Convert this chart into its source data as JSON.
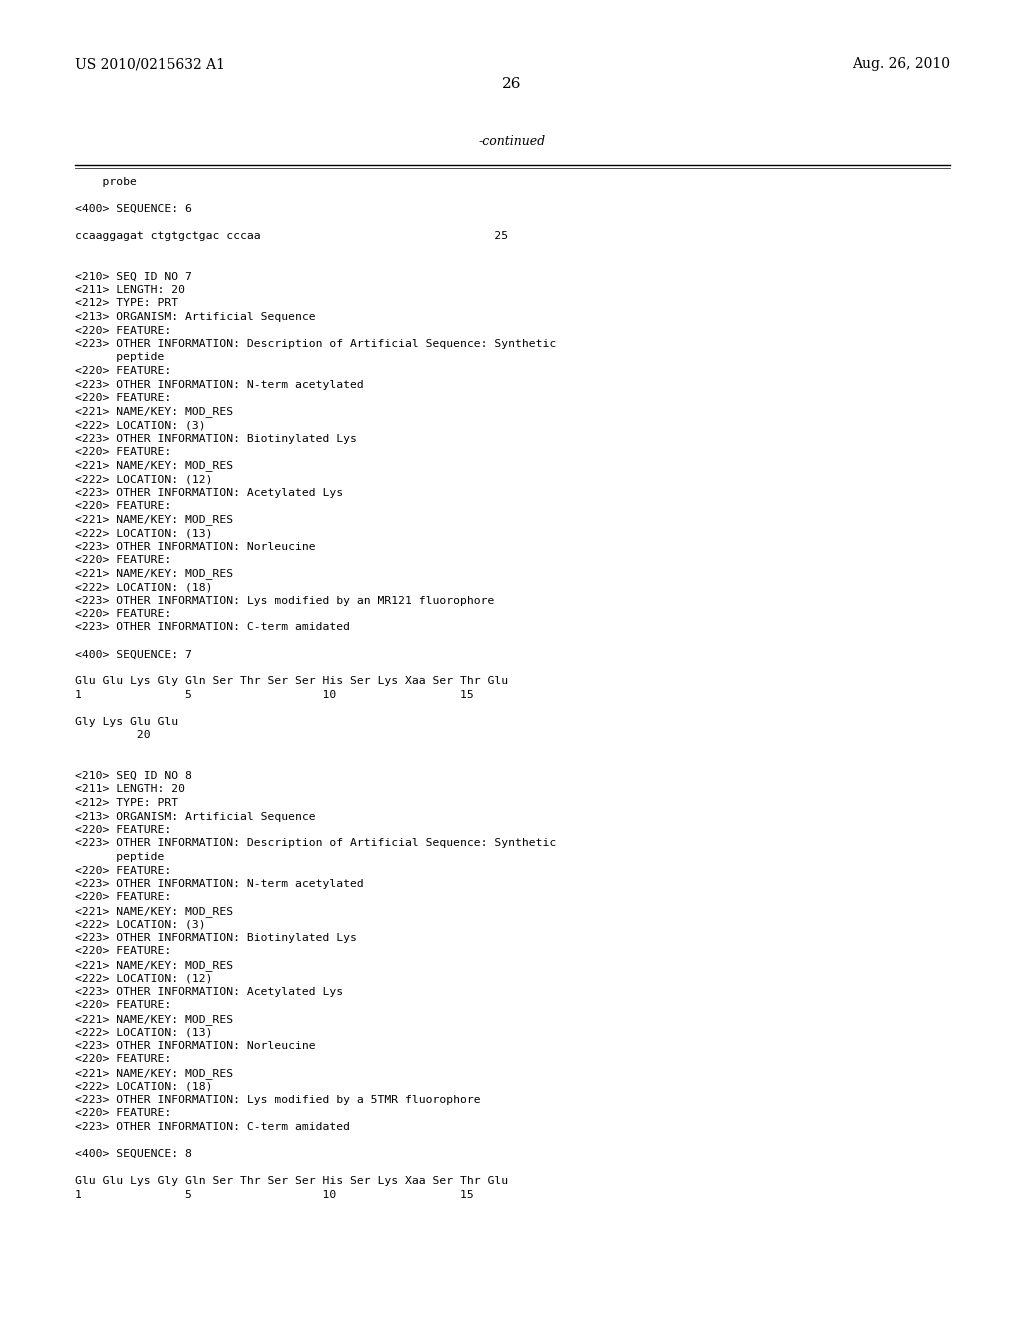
{
  "bg_color": "#ffffff",
  "header_left": "US 2010/0215632 A1",
  "header_right": "Aug. 26, 2010",
  "page_number": "26",
  "continued_label": "-continued",
  "content_lines": [
    "    probe",
    "",
    "<400> SEQUENCE: 6",
    "",
    "ccaaggagat ctgtgctgac cccaa                                  25",
    "",
    "",
    "<210> SEQ ID NO 7",
    "<211> LENGTH: 20",
    "<212> TYPE: PRT",
    "<213> ORGANISM: Artificial Sequence",
    "<220> FEATURE:",
    "<223> OTHER INFORMATION: Description of Artificial Sequence: Synthetic",
    "      peptide",
    "<220> FEATURE:",
    "<223> OTHER INFORMATION: N-term acetylated",
    "<220> FEATURE:",
    "<221> NAME/KEY: MOD_RES",
    "<222> LOCATION: (3)",
    "<223> OTHER INFORMATION: Biotinylated Lys",
    "<220> FEATURE:",
    "<221> NAME/KEY: MOD_RES",
    "<222> LOCATION: (12)",
    "<223> OTHER INFORMATION: Acetylated Lys",
    "<220> FEATURE:",
    "<221> NAME/KEY: MOD_RES",
    "<222> LOCATION: (13)",
    "<223> OTHER INFORMATION: Norleucine",
    "<220> FEATURE:",
    "<221> NAME/KEY: MOD_RES",
    "<222> LOCATION: (18)",
    "<223> OTHER INFORMATION: Lys modified by an MR121 fluorophore",
    "<220> FEATURE:",
    "<223> OTHER INFORMATION: C-term amidated",
    "",
    "<400> SEQUENCE: 7",
    "",
    "Glu Glu Lys Gly Gln Ser Thr Ser Ser His Ser Lys Xaa Ser Thr Glu",
    "1               5                   10                  15",
    "",
    "Gly Lys Glu Glu",
    "         20",
    "",
    "",
    "<210> SEQ ID NO 8",
    "<211> LENGTH: 20",
    "<212> TYPE: PRT",
    "<213> ORGANISM: Artificial Sequence",
    "<220> FEATURE:",
    "<223> OTHER INFORMATION: Description of Artificial Sequence: Synthetic",
    "      peptide",
    "<220> FEATURE:",
    "<223> OTHER INFORMATION: N-term acetylated",
    "<220> FEATURE:",
    "<221> NAME/KEY: MOD_RES",
    "<222> LOCATION: (3)",
    "<223> OTHER INFORMATION: Biotinylated Lys",
    "<220> FEATURE:",
    "<221> NAME/KEY: MOD_RES",
    "<222> LOCATION: (12)",
    "<223> OTHER INFORMATION: Acetylated Lys",
    "<220> FEATURE:",
    "<221> NAME/KEY: MOD_RES",
    "<222> LOCATION: (13)",
    "<223> OTHER INFORMATION: Norleucine",
    "<220> FEATURE:",
    "<221> NAME/KEY: MOD_RES",
    "<222> LOCATION: (18)",
    "<223> OTHER INFORMATION: Lys modified by a 5TMR fluorophore",
    "<220> FEATURE:",
    "<223> OTHER INFORMATION: C-term amidated",
    "",
    "<400> SEQUENCE: 8",
    "",
    "Glu Glu Lys Gly Gln Ser Thr Ser Ser His Ser Lys Xaa Ser Thr Glu",
    "1               5                   10                  15"
  ]
}
